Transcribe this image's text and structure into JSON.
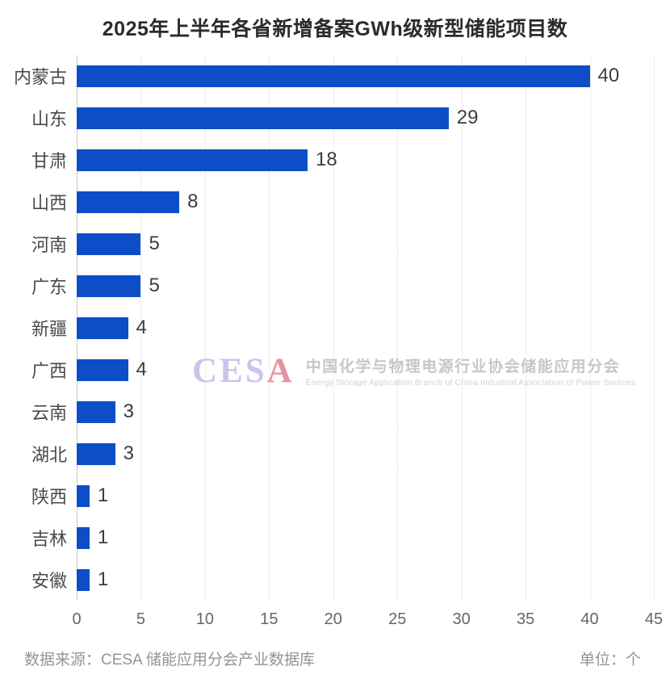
{
  "title": "2025年上半年各省新增备案GWh级新型储能项目数",
  "chart_data": {
    "type": "bar",
    "orientation": "horizontal",
    "title": "2025年上半年各省新增备案GWh级新型储能项目数",
    "categories": [
      "内蒙古",
      "山东",
      "甘肃",
      "山西",
      "河南",
      "广东",
      "新疆",
      "广西",
      "云南",
      "湖北",
      "陕西",
      "吉林",
      "安徽"
    ],
    "values": [
      40,
      29,
      18,
      8,
      5,
      5,
      4,
      4,
      3,
      3,
      1,
      1,
      1
    ],
    "xlabel": "",
    "ylabel": "",
    "xlim": [
      0,
      45
    ],
    "xticks": [
      0,
      5,
      10,
      15,
      20,
      25,
      30,
      35,
      40,
      45
    ],
    "grid": "vertical-dotted",
    "legend": "none",
    "data_labels": true,
    "bar_color": "#0d4ec8"
  },
  "watermark": {
    "logo_main": "CES",
    "logo_accent": "A",
    "org_cn": "中国化学与物理电源行业协会储能应用分会",
    "org_en": "Energy Storage Application Branch of China Industrial Association of Power Sources"
  },
  "footer": {
    "source": "数据来源：CESA 储能应用分会产业数据库",
    "unit": "单位：个"
  },
  "colors": {
    "bar": "#0d4ec8",
    "title_text": "#2b2b2b",
    "axis_text": "#666666",
    "gridline": "#dcdcdc",
    "watermark_logo_main": "#c7c6ea",
    "watermark_logo_accent": "#e6929e"
  }
}
